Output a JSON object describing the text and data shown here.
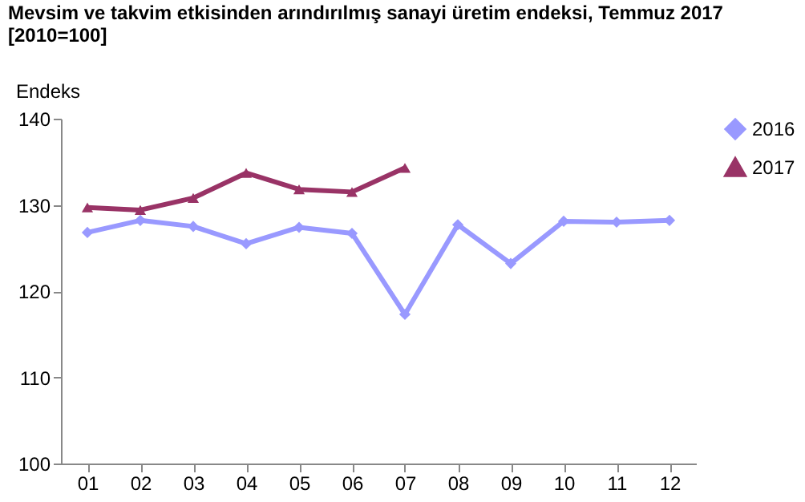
{
  "chart_data": {
    "type": "line",
    "title": "Mevsim ve takvim etkisinden arındırılmış sanayi üretim endeksi,  Temmuz 2017",
    "subtitle": "[2010=100]",
    "ylabel": "Endeks",
    "categories": [
      "01",
      "02",
      "03",
      "04",
      "05",
      "06",
      "07",
      "08",
      "09",
      "10",
      "11",
      "12"
    ],
    "series": [
      {
        "name": "2016",
        "color": "#9999ff",
        "marker": "diamond",
        "values": [
          126.8,
          128.2,
          127.5,
          125.5,
          127.4,
          126.7,
          117.3,
          127.7,
          123.2,
          128.1,
          128.0,
          128.2
        ]
      },
      {
        "name": "2017",
        "color": "#993366",
        "marker": "triangle",
        "values": [
          129.7,
          129.4,
          130.8,
          133.7,
          131.8,
          131.5,
          134.3,
          null,
          null,
          null,
          null,
          null
        ]
      }
    ],
    "ylim": [
      100,
      140
    ],
    "yticks": [
      100,
      110,
      120,
      130,
      140
    ],
    "grid": false,
    "legend": "right",
    "line_style": "solid"
  }
}
